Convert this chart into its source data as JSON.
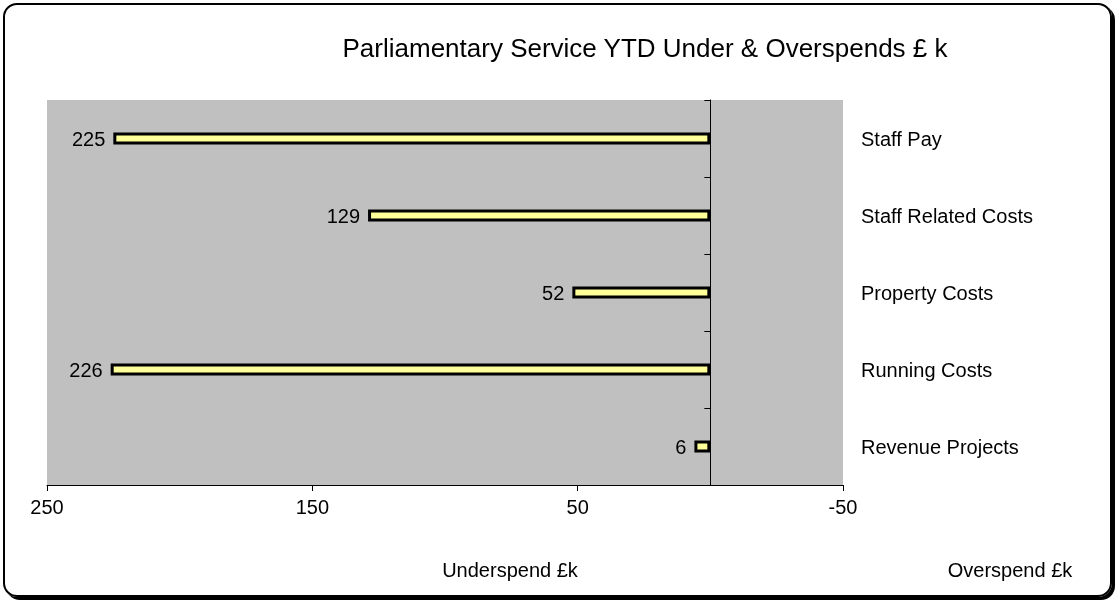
{
  "chart_data": {
    "type": "bar",
    "orientation": "horizontal",
    "title": "Parliamentary Service YTD Under & Overspends £ k",
    "categories": [
      "Staff Pay",
      "Staff Related Costs",
      "Property Costs",
      "Running Costs",
      "Revenue Projects"
    ],
    "values": [
      225,
      129,
      52,
      226,
      6
    ],
    "color": "#ffff99",
    "xlim": [
      250,
      -50
    ],
    "xticks": [
      250,
      150,
      50,
      -50
    ],
    "grid": false,
    "data_labels": true,
    "annotations": [
      "Underspend £k",
      "Overspend £k"
    ]
  }
}
